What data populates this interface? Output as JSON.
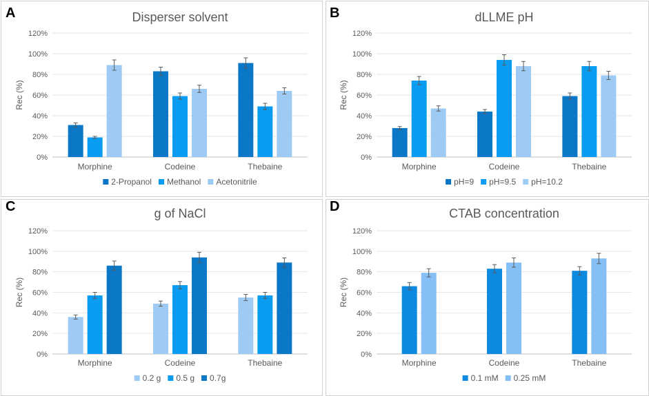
{
  "chart_data": [
    {
      "panel": "A",
      "type": "bar",
      "title": "Disperser solvent",
      "xlabel": "",
      "ylabel": "Rec (%)",
      "ylim": [
        0,
        120
      ],
      "yticks": [
        "0%",
        "20%",
        "40%",
        "60%",
        "80%",
        "100%",
        "120%"
      ],
      "grid": true,
      "legend_position": "bottom",
      "categories": [
        "Morphine",
        "Codeine",
        "Thebaine"
      ],
      "series": [
        {
          "name": "2-Propanol",
          "color": "#0b77c7",
          "values": [
            31,
            83,
            91
          ],
          "errors": [
            2,
            4,
            5
          ]
        },
        {
          "name": "Methanol",
          "color": "#0a9cf0",
          "values": [
            19,
            59,
            49
          ],
          "errors": [
            1,
            3,
            3
          ]
        },
        {
          "name": "Acetonitrile",
          "color": "#9ecbf3",
          "values": [
            89,
            66,
            64
          ],
          "errors": [
            5,
            3.5,
            3
          ]
        }
      ]
    },
    {
      "panel": "B",
      "type": "bar",
      "title": "dLLME pH",
      "xlabel": "",
      "ylabel": "Rec (%)",
      "ylim": [
        0,
        120
      ],
      "yticks": [
        "0%",
        "20%",
        "40%",
        "60%",
        "80%",
        "100%",
        "120%"
      ],
      "grid": true,
      "legend_position": "bottom",
      "categories": [
        "Morphine",
        "Codeine",
        "Thebaine"
      ],
      "series": [
        {
          "name": "pH=9",
          "color": "#0b77c7",
          "values": [
            28,
            44,
            59
          ],
          "errors": [
            1.5,
            2,
            3
          ]
        },
        {
          "name": "pH=9.5",
          "color": "#0a9cf0",
          "values": [
            74,
            94,
            88
          ],
          "errors": [
            4,
            5,
            4.5
          ]
        },
        {
          "name": "pH=10.2",
          "color": "#9ecbf3",
          "values": [
            47,
            88,
            79
          ],
          "errors": [
            2.5,
            4.5,
            4
          ]
        }
      ]
    },
    {
      "panel": "C",
      "type": "bar",
      "title": "g of NaCl",
      "xlabel": "",
      "ylabel": "Rec (%)",
      "ylim": [
        0,
        120
      ],
      "yticks": [
        "0%",
        "20%",
        "40%",
        "60%",
        "80%",
        "100%",
        "120%"
      ],
      "grid": true,
      "legend_position": "bottom",
      "categories": [
        "Morphine",
        "Codeine",
        "Thebaine"
      ],
      "series": [
        {
          "name": "0.2 g",
          "color": "#9ecbf3",
          "values": [
            36,
            49,
            55
          ],
          "errors": [
            2,
            2.5,
            3
          ]
        },
        {
          "name": "0.5 g",
          "color": "#0a9cf0",
          "values": [
            57,
            67,
            57
          ],
          "errors": [
            3,
            3.5,
            3
          ]
        },
        {
          "name": "0.7g",
          "color": "#0b77c7",
          "values": [
            86,
            94,
            89
          ],
          "errors": [
            4.5,
            5,
            4.5
          ]
        }
      ]
    },
    {
      "panel": "D",
      "type": "bar",
      "title": "CTAB concentration",
      "xlabel": "",
      "ylabel": "Rec (%)",
      "ylim": [
        0,
        120
      ],
      "yticks": [
        "0%",
        "20%",
        "40%",
        "60%",
        "80%",
        "100%",
        "120%"
      ],
      "grid": true,
      "legend_position": "bottom",
      "categories": [
        "Morphine",
        "Codeine",
        "Thebaine"
      ],
      "series": [
        {
          "name": "0.1 mM",
          "color": "#0b8ae0",
          "values": [
            66,
            83,
            81
          ],
          "errors": [
            3.5,
            4,
            4
          ]
        },
        {
          "name": "0.25 mM",
          "color": "#86bff5",
          "values": [
            79,
            89,
            93
          ],
          "errors": [
            4,
            4.5,
            5
          ]
        }
      ]
    }
  ]
}
